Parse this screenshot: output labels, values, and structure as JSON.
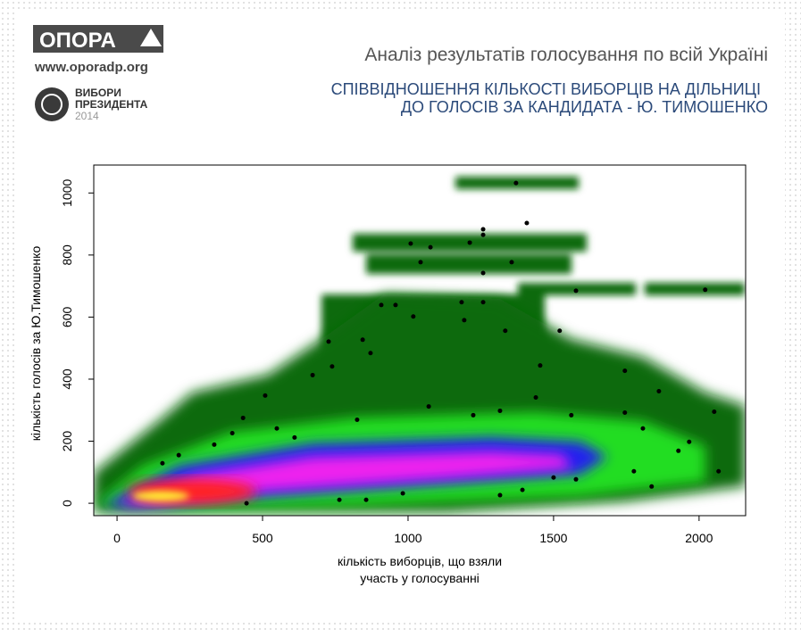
{
  "branding": {
    "logo": "ОПОРА",
    "url": "www.oporadp.org",
    "badge": [
      "ВИБОРИ",
      "ПРЕЗИДЕНТА",
      "2014"
    ]
  },
  "chart_data": {
    "type": "scatter",
    "title": "Аналіз результатів голосування по всій Україні",
    "subtitle": [
      "СПІВВІДНОШЕННЯ КІЛЬКОСТІ ВИБОРЦІВ НА ДІЛЬНИЦІ",
      "ДО ГОЛОСІВ ЗА КАНДИДАТА - Ю. ТИМОШЕНКО"
    ],
    "xlabel": [
      "кількість виборців, що взяли",
      "участь у голосуванні"
    ],
    "ylabel": "кількість голосів за Ю.Тимошенко",
    "xlim": [
      -80,
      2160
    ],
    "ylim": [
      -40,
      1090
    ],
    "xticks": [
      0,
      500,
      1000,
      1500,
      2000
    ],
    "yticks": [
      0,
      200,
      400,
      600,
      800,
      1000
    ],
    "color": "#000000",
    "x": [
      1371,
      1408,
      1258,
      1258,
      1009,
      1077,
      1212,
      1043,
      1258,
      1356,
      1577,
      2021,
      1184,
      1258,
      908,
      957,
      1018,
      844,
      727,
      1521,
      1334,
      1193,
      871,
      739,
      1454,
      1745,
      1862,
      509,
      2052,
      433,
      156,
      212,
      334,
      1500,
      1393,
      982,
      764,
      445,
      1776,
      2067,
      1929,
      1966,
      610,
      825,
      1071,
      1224,
      1316,
      1561,
      1745,
      1807,
      1439,
      672,
      1837,
      1316,
      856,
      1577,
      396,
      549
    ],
    "values": [
      1032,
      903,
      883,
      865,
      837,
      825,
      840,
      777,
      742,
      777,
      685,
      688,
      648,
      648,
      639,
      639,
      602,
      527,
      521,
      556,
      556,
      590,
      484,
      441,
      444,
      427,
      361,
      347,
      295,
      275,
      129,
      155,
      189,
      83,
      43,
      32,
      11,
      0,
      103,
      103,
      169,
      198,
      212,
      269,
      312,
      284,
      298,
      284,
      292,
      241,
      341,
      413,
      54,
      26,
      11,
      77,
      226,
      241
    ]
  }
}
